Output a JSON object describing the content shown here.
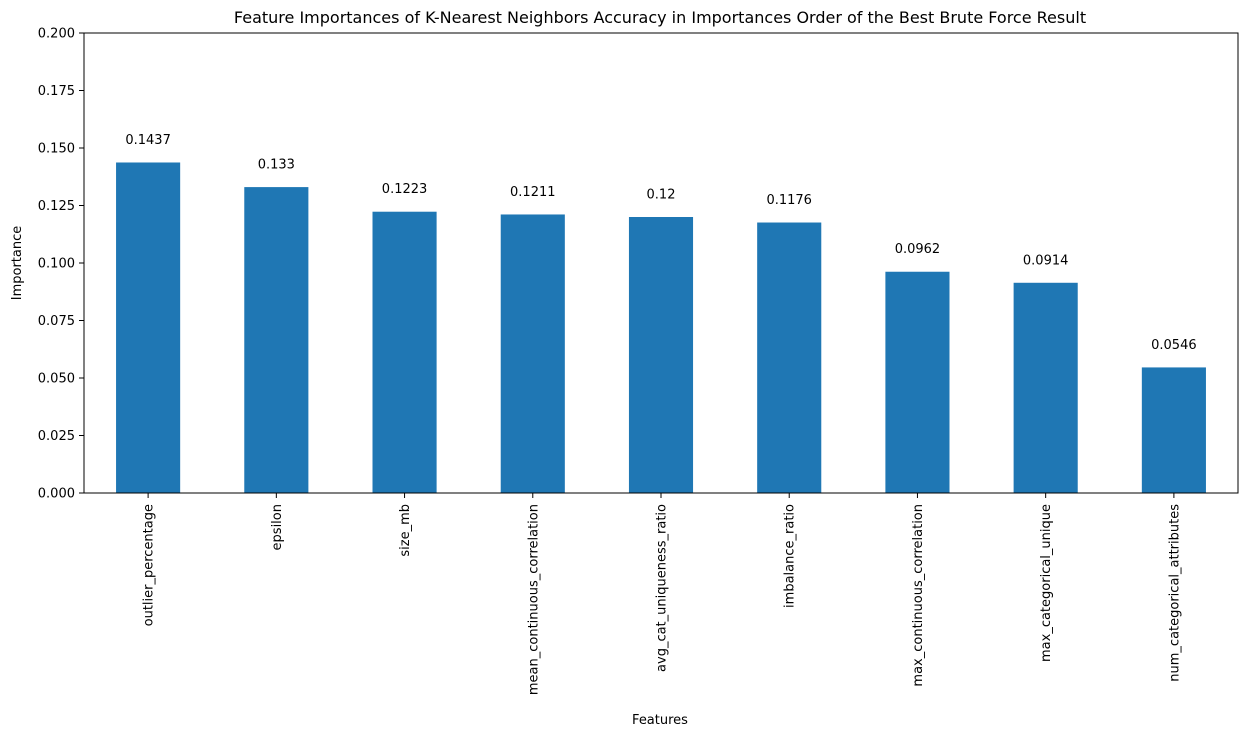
{
  "chart_data": {
    "type": "bar",
    "title": "Feature Importances of K-Nearest Neighbors Accuracy in Importances Order of the Best Brute Force Result",
    "xlabel": "Features",
    "ylabel": "Importance",
    "categories": [
      "outlier_percentage",
      "epsilon",
      "size_mb",
      "mean_continuous_correlation",
      "avg_cat_uniqueness_ratio",
      "imbalance_ratio",
      "max_continuous_correlation",
      "max_categorical_unique",
      "num_categorical_attributes"
    ],
    "values": [
      0.1437,
      0.133,
      0.1223,
      0.1211,
      0.12,
      0.1176,
      0.0962,
      0.0914,
      0.0546
    ],
    "value_labels": [
      "0.1437",
      "0.133",
      "0.1223",
      "0.1211",
      "0.12",
      "0.1176",
      "0.0962",
      "0.0914",
      "0.0546"
    ],
    "ylim": [
      0,
      0.2
    ],
    "yticks": [
      "0.000",
      "0.025",
      "0.050",
      "0.075",
      "0.100",
      "0.125",
      "0.150",
      "0.175",
      "0.200"
    ],
    "bar_color": "#1f77b4",
    "grid": false,
    "legend": "none"
  }
}
